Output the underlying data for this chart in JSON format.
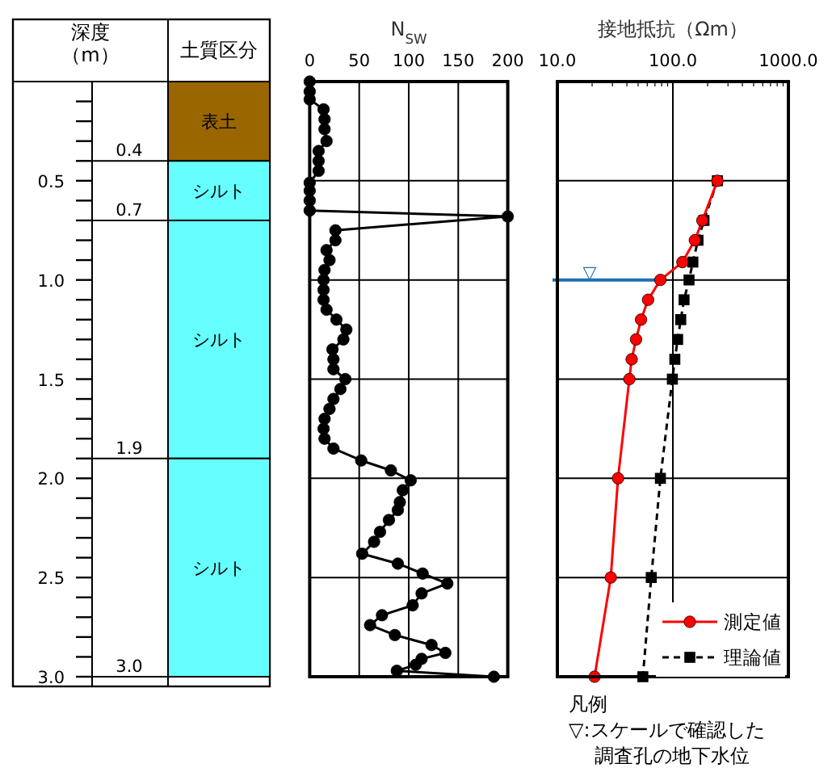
{
  "chart_data": [
    {
      "type": "bar",
      "stacked": true,
      "categories": [
        "土質区分"
      ],
      "ylabel": "深度（m）",
      "ylim": [
        3.0,
        0
      ],
      "yticks": [
        0.5,
        {
          "value": 1.0,
          "label": "1.0"
        },
        1.5,
        {
          "value": 2.0,
          "label": "2.0"
        },
        2.5,
        {
          "value": 3.0,
          "label": "3.0"
        }
      ],
      "annotations": [
        "0.4",
        "0.7",
        "1.9",
        "3.0"
      ],
      "series": [
        {
          "name": "表土",
          "color": "#996600",
          "values": [
            0.4
          ]
        },
        {
          "name": "シルト",
          "color": "#66ffff",
          "values": [
            0.3
          ]
        },
        {
          "name": "シルト",
          "color": "#66ffff",
          "values": [
            1.2
          ]
        },
        {
          "name": "シルト",
          "color": "#66ffff",
          "values": [
            1.1
          ]
        }
      ]
    },
    {
      "type": "line",
      "orientation": "horizontal",
      "xlabel": "N$_{SW}$",
      "xlim": [
        0,
        200
      ],
      "xticks": [
        0,
        50,
        100,
        150,
        200
      ],
      "ylim": [
        3.0,
        0
      ],
      "yticks": [
        {
          "value": 0.5,
          "label": null
        },
        {
          "value": 1.0,
          "label": null
        },
        {
          "value": 1.5,
          "label": null
        },
        {
          "value": 2.0,
          "label": null
        },
        {
          "value": 2.5,
          "label": null
        }
      ],
      "tick_labels": "x",
      "grid": true,
      "marker": "circle",
      "series": [
        {
          "color": "#000000",
          "x": [
            0,
            0.05,
            0.09,
            0.14,
            0.19,
            0.24,
            0.3,
            0.35,
            0.4,
            0.45,
            0.51,
            0.55,
            0.6,
            0.65,
            0.68,
            0.75,
            0.8,
            0.85,
            0.9,
            0.95,
            1.0,
            1.05,
            1.1,
            1.15,
            1.2,
            1.25,
            1.3,
            1.35,
            1.4,
            1.45,
            1.5,
            1.55,
            1.6,
            1.65,
            1.7,
            1.75,
            1.8,
            1.85,
            1.91,
            1.96,
            2.01,
            2.06,
            2.12,
            2.16,
            2.21,
            2.27,
            2.32,
            2.38,
            2.43,
            2.48,
            2.53,
            2.58,
            2.64,
            2.69,
            2.74,
            2.79,
            2.84,
            2.88,
            2.91,
            2.94,
            2.97,
            3.0
          ],
          "values": [
            0,
            0,
            0,
            14,
            15,
            15,
            17,
            9,
            9,
            9,
            0,
            0,
            0,
            0,
            200,
            26,
            26,
            17,
            20,
            15,
            14,
            14,
            14,
            17,
            27,
            37,
            34,
            23,
            24,
            24,
            36,
            31,
            24,
            20,
            15,
            14,
            15,
            24,
            52,
            82,
            102,
            94,
            91,
            89,
            80,
            71,
            65,
            53,
            89,
            114,
            139,
            113,
            104,
            73,
            61,
            86,
            123,
            137,
            113,
            107,
            88,
            186
          ]
        }
      ]
    },
    {
      "type": "line",
      "orientation": "horizontal",
      "xlabel": "接地抵抗（Ωm）",
      "log": "x",
      "xlim": [
        10,
        1000
      ],
      "xticks": [
        {
          "value": 10,
          "label": "10.0"
        },
        {
          "value": 100,
          "label": "100.0"
        },
        {
          "value": 1000,
          "label": "1000.0"
        }
      ],
      "ylim": [
        3.0,
        0
      ],
      "yticks": [
        {
          "value": 0.5,
          "label": null
        },
        {
          "value": 1.0,
          "label": null
        },
        {
          "value": 1.5,
          "label": null
        },
        {
          "value": 2.0,
          "label": null
        },
        {
          "value": 2.5,
          "label": null
        }
      ],
      "tick_labels": "x",
      "grid": true,
      "legend": "bottom right",
      "ref_lines": [
        {
          "axis": "y",
          "value": 1.0,
          "label": "▽",
          "color": "#1f6fb5"
        }
      ],
      "annotations": [
        "凡例",
        "▽:スケールで確認した",
        "調査孔の地下水位"
      ],
      "series": [
        {
          "name": "測定値",
          "color": "#ff0000",
          "marker": "circle",
          "line_style": "solid",
          "x": [
            0.5,
            0.7,
            0.8,
            0.91,
            1.0,
            1.1,
            1.2,
            1.3,
            1.4,
            1.5,
            2.0,
            2.5,
            3.0
          ],
          "values": [
            243,
            180,
            155,
            121,
            78,
            61,
            53,
            48,
            44,
            42,
            33.5,
            29,
            21
          ]
        },
        {
          "name": "理論値",
          "color": "#000000",
          "marker": "square",
          "line_style": "dashed",
          "x": [
            0.5,
            0.7,
            0.8,
            0.91,
            1.0,
            1.1,
            1.2,
            1.3,
            1.4,
            1.5,
            2.0,
            2.5,
            3.0
          ],
          "values": [
            243,
            186,
            165,
            149,
            138,
            125,
            117,
            110,
            104,
            99,
            78,
            65,
            55
          ]
        }
      ]
    }
  ]
}
